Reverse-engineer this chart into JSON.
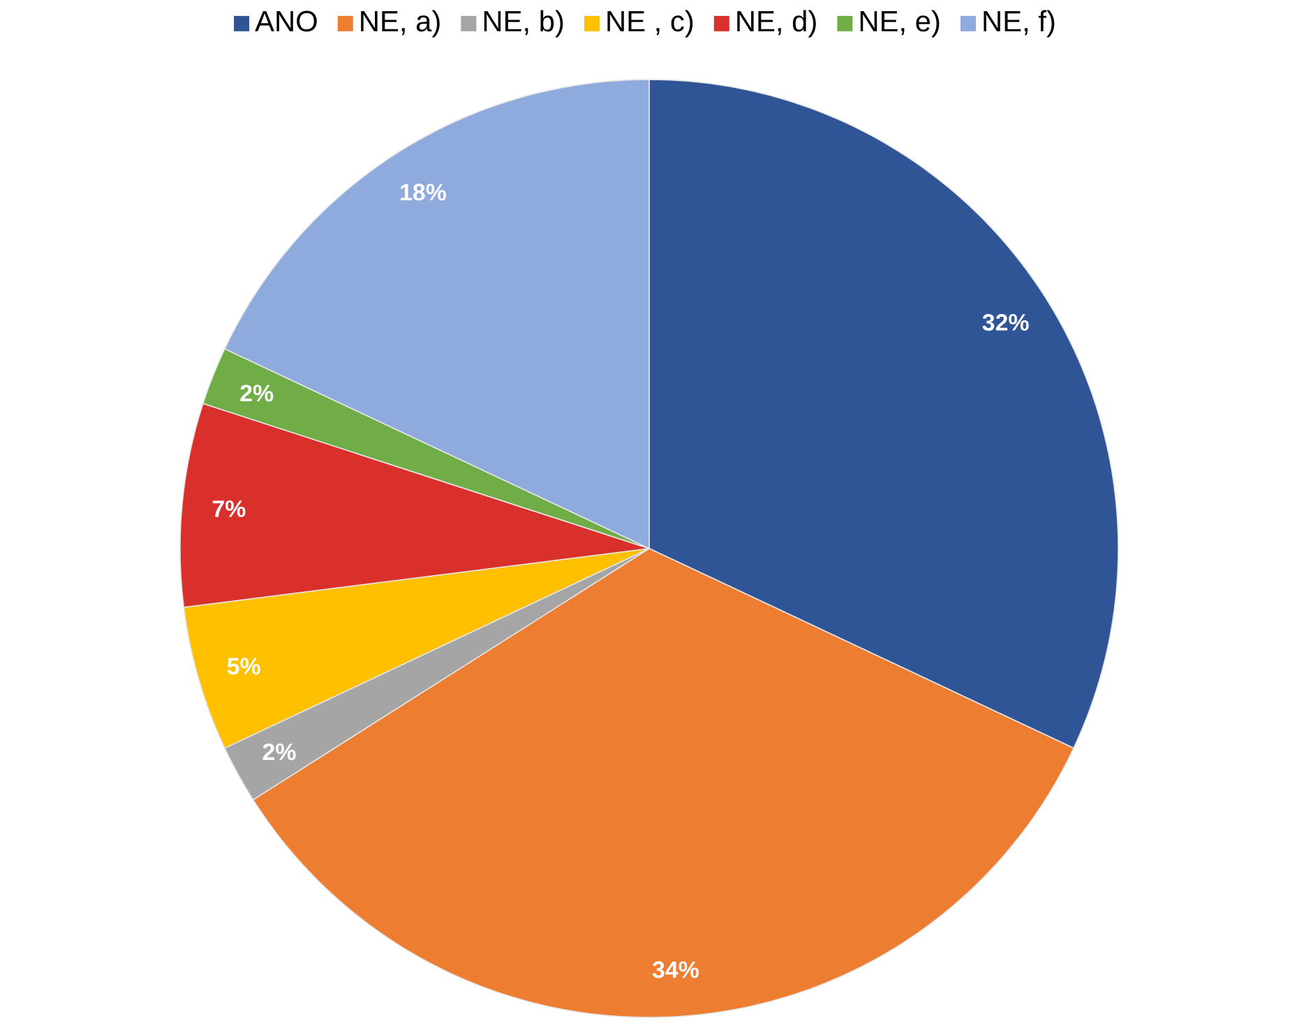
{
  "chart_data": {
    "type": "pie",
    "categories": [
      "ANO",
      "NE, a)",
      "NE, b)",
      "NE , c)",
      "NE, d)",
      "NE, e)",
      "NE, f)"
    ],
    "values": [
      32,
      34,
      2,
      5,
      7,
      2,
      18
    ],
    "colors": [
      "#2f5597",
      "#ed7d31",
      "#a5a5a5",
      "#ffc000",
      "#d9302c",
      "#70ad47",
      "#8faadc"
    ],
    "value_labels": [
      "32%",
      "34%",
      "2%",
      "5%",
      "7%",
      "2%",
      "18%"
    ],
    "legend": "top"
  }
}
